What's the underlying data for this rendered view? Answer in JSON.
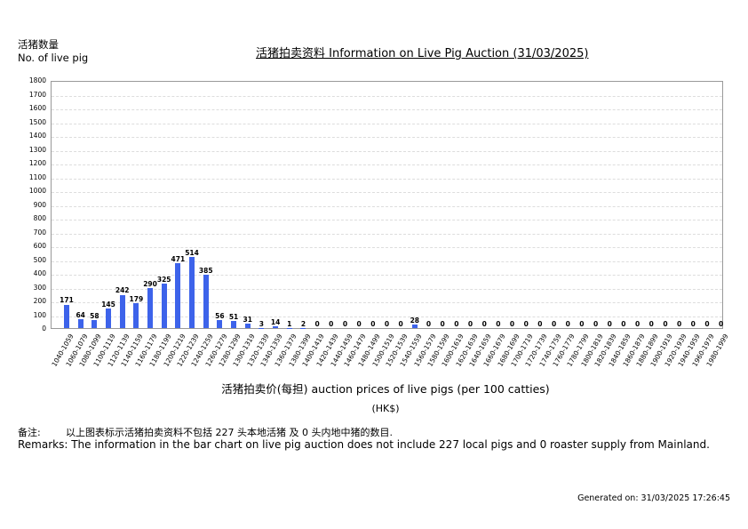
{
  "header": {
    "ylabel_cn": "活猪数量",
    "ylabel_en": "No. of live pig",
    "title": "活猪拍卖资料 Information on Live Pig Auction (31/03/2025)"
  },
  "chart_data": {
    "type": "bar",
    "title": "活猪拍卖资料 Information on Live Pig Auction (31/03/2025)",
    "xlabel": "活猪拍卖价(每担) auction prices of live pigs (per 100 catties)",
    "xunit": "(HK$)",
    "ylabel": "活猪数量 No. of live pig",
    "ylim": [
      0,
      1800
    ],
    "yticks": [
      0,
      100,
      200,
      300,
      400,
      500,
      600,
      700,
      800,
      900,
      1000,
      1100,
      1200,
      1300,
      1400,
      1500,
      1600,
      1700,
      1800
    ],
    "grid": true,
    "legend": "none",
    "bar_color": "#3d63ea",
    "categories": [
      "1040-1059",
      "1060-1079",
      "1080-1099",
      "1100-1119",
      "1120-1139",
      "1140-1159",
      "1160-1179",
      "1180-1199",
      "1200-1219",
      "1220-1239",
      "1240-1259",
      "1260-1279",
      "1280-1299",
      "1300-1319",
      "1320-1339",
      "1340-1359",
      "1360-1379",
      "1380-1399",
      "1400-1419",
      "1420-1439",
      "1440-1459",
      "1460-1479",
      "1480-1499",
      "1500-1519",
      "1520-1539",
      "1540-1559",
      "1560-1579",
      "1580-1599",
      "1600-1619",
      "1620-1639",
      "1640-1659",
      "1660-1679",
      "1680-1699",
      "1700-1719",
      "1720-1739",
      "1740-1759",
      "1760-1779",
      "1780-1799",
      "1800-1819",
      "1820-1839",
      "1840-1859",
      "1860-1879",
      "1880-1899",
      "1900-1919",
      "1920-1939",
      "1940-1959",
      "1960-1979",
      "1980-1999"
    ],
    "values": [
      171,
      64,
      58,
      145,
      242,
      179,
      290,
      325,
      471,
      514,
      385,
      56,
      51,
      31,
      3,
      14,
      1,
      2,
      0,
      0,
      0,
      0,
      0,
      0,
      0,
      28,
      0,
      0,
      0,
      0,
      0,
      0,
      0,
      0,
      0,
      0,
      0,
      0,
      0,
      0,
      0,
      0,
      0,
      0,
      0,
      0,
      0,
      0
    ]
  },
  "footer": {
    "remark_cn_label": "备注:",
    "remark_cn": "以上图表标示活猪拍卖资料不包括 227 头本地活猪 及 0 头内地中猪的数目.",
    "remark_en": "Remarks: The information in the bar chart on live pig auction does not include 227 local pigs and 0 roaster supply from Mainland.",
    "generated": "Generated on: 31/03/2025 17:26:45"
  }
}
